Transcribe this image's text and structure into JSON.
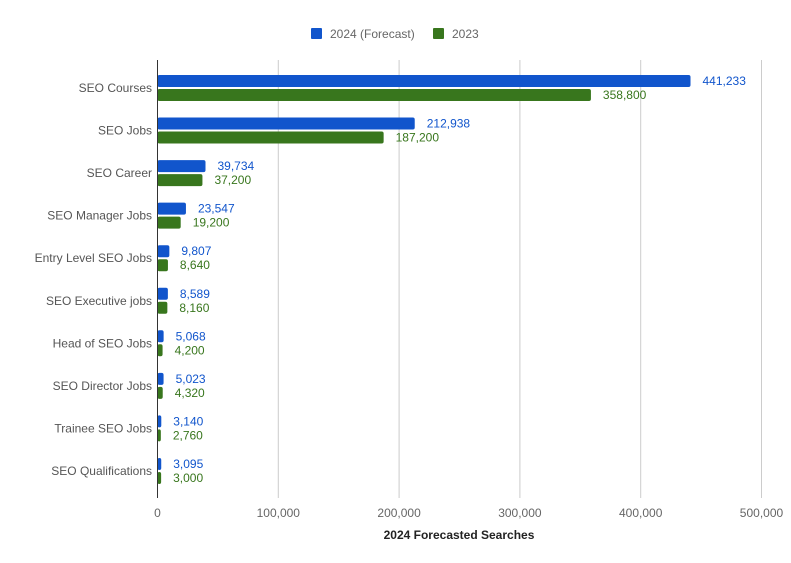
{
  "chart_data": {
    "type": "bar",
    "orientation": "horizontal",
    "categories": [
      "SEO Courses",
      "SEO Jobs",
      "SEO Career",
      "SEO Manager Jobs",
      "Entry Level SEO Jobs",
      "SEO Executive jobs",
      "Head of SEO Jobs",
      "SEO Director Jobs",
      "Trainee SEO Jobs",
      "SEO Qualifications"
    ],
    "series": [
      {
        "name": "2024 (Forecast)",
        "color": "#1155cc",
        "values": [
          441233,
          212938,
          39734,
          23547,
          9807,
          8589,
          5068,
          5023,
          3140,
          3095
        ],
        "labels": [
          "441,233",
          "212,938",
          "39,734",
          "23,547",
          "9,807",
          "8,589",
          "5,068",
          "5,023",
          "3,140",
          "3,095"
        ]
      },
      {
        "name": "2023",
        "color": "#38761d",
        "values": [
          358800,
          187200,
          37200,
          19200,
          8640,
          8160,
          4200,
          4320,
          2760,
          3000
        ],
        "labels": [
          "358,800",
          "187,200",
          "37,200",
          "19,200",
          "8,640",
          "8,160",
          "4,200",
          "4,320",
          "2,760",
          "3,000"
        ]
      }
    ],
    "xlabel": "2024 Forecasted Searches",
    "ylabel": "",
    "xlim": [
      0,
      500000
    ],
    "xticks": [
      0,
      100000,
      200000,
      300000,
      400000,
      500000
    ],
    "xtick_labels": [
      "0",
      "100,000",
      "200,000",
      "300,000",
      "400,000",
      "500,000"
    ],
    "grid": true,
    "legend_position": "top"
  }
}
